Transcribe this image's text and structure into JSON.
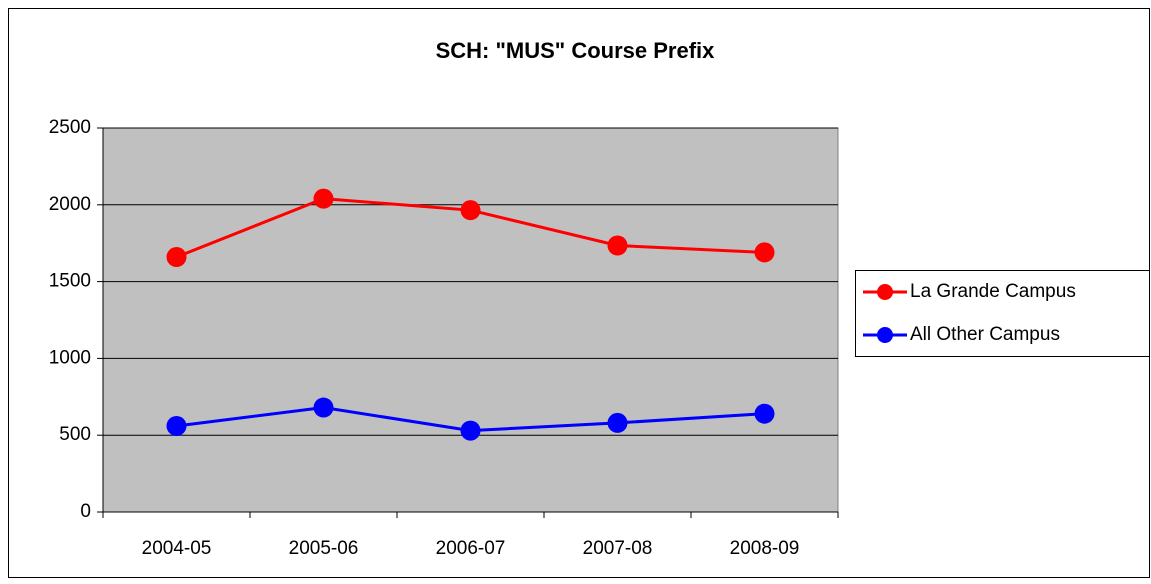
{
  "chart_data": {
    "type": "line",
    "title": "SCH: \"MUS\" Course Prefix",
    "categories": [
      "2004-05",
      "2005-06",
      "2006-07",
      "2007-08",
      "2008-09"
    ],
    "series": [
      {
        "name": "La Grande Campus",
        "color": "#ff0000",
        "values": [
          1660,
          2040,
          1965,
          1735,
          1690
        ]
      },
      {
        "name": "All Other Campus",
        "color": "#0000ff",
        "values": [
          560,
          680,
          530,
          580,
          640
        ]
      }
    ],
    "ylim": [
      0,
      2500
    ],
    "yticks": [
      0,
      500,
      1000,
      1500,
      2000,
      2500
    ],
    "grid": true,
    "legend": "right"
  }
}
